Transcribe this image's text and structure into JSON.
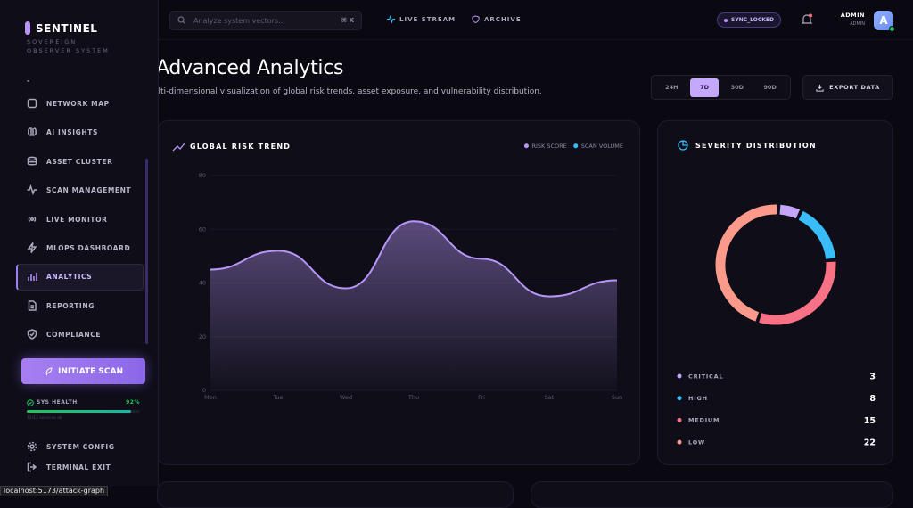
{
  "sidebar": {
    "brand": "SENTINEL",
    "tagline": "SOVEREIGN OBSERVER SYSTEM",
    "nav": [
      "-",
      "NETWORK MAP",
      "AI INSIGHTS",
      "ASSET CLUSTER",
      "SCAN MANAGEMENT",
      "LIVE MONITOR",
      "MLOPS DASHBOARD",
      "ANALYTICS",
      "REPORTING",
      "COMPLIANCE"
    ],
    "cta": "INITIATE SCAN",
    "health": {
      "label": "SYS HEALTH",
      "value": 92,
      "value_label": "92%",
      "note": "12/12 services ok"
    },
    "footer": [
      "SYSTEM CONFIG",
      "TERMINAL EXIT"
    ]
  },
  "topbar": {
    "search_placeholder": "Analyze system vectors...",
    "shortcut": "⌘ K",
    "tabs": [
      "LIVE STREAM",
      "ARCHIVE"
    ],
    "status": "SYNC_LOCKED",
    "user_name": "ADMIN",
    "user_role": "ADMIN",
    "avatar": "A"
  },
  "header": {
    "title": "Advanced Analytics",
    "subtitle": "Multi-dimensional visualization of global risk trends, asset exposure, and vulnerability distribution."
  },
  "ranges": [
    "24H",
    "7D",
    "30D",
    "90D"
  ],
  "export": "EXPORT DATA",
  "risk_chart": {
    "type": "area",
    "title": "GLOBAL RISK TREND",
    "categories": [
      "Mon",
      "Tue",
      "Wed",
      "Thu",
      "Fri",
      "Sat",
      "Sun"
    ],
    "series": [
      {
        "name": "RISK SCORE",
        "color": "#b794f6",
        "values": [
          45,
          52,
          38,
          63,
          49,
          35,
          41
        ]
      },
      {
        "name": "SCAN VOLUME",
        "color": "#38bdf8",
        "values": [
          null,
          null,
          null,
          null,
          null,
          null,
          null
        ]
      }
    ],
    "ylim": [
      0,
      80
    ],
    "yticks": [
      0,
      20,
      40,
      60,
      80
    ],
    "grid": true
  },
  "severity_chart": {
    "type": "donut",
    "title": "SEVERITY DISTRIBUTION",
    "categories": [
      "CRITICAL",
      "HIGH",
      "MEDIUM",
      "LOW"
    ],
    "values": [
      3,
      8,
      15,
      22
    ],
    "colors": [
      "#c4a5f9",
      "#38bdf8",
      "#f87185",
      "#fb9a8a"
    ]
  },
  "status_url": "localhost:5173/attack-graph"
}
